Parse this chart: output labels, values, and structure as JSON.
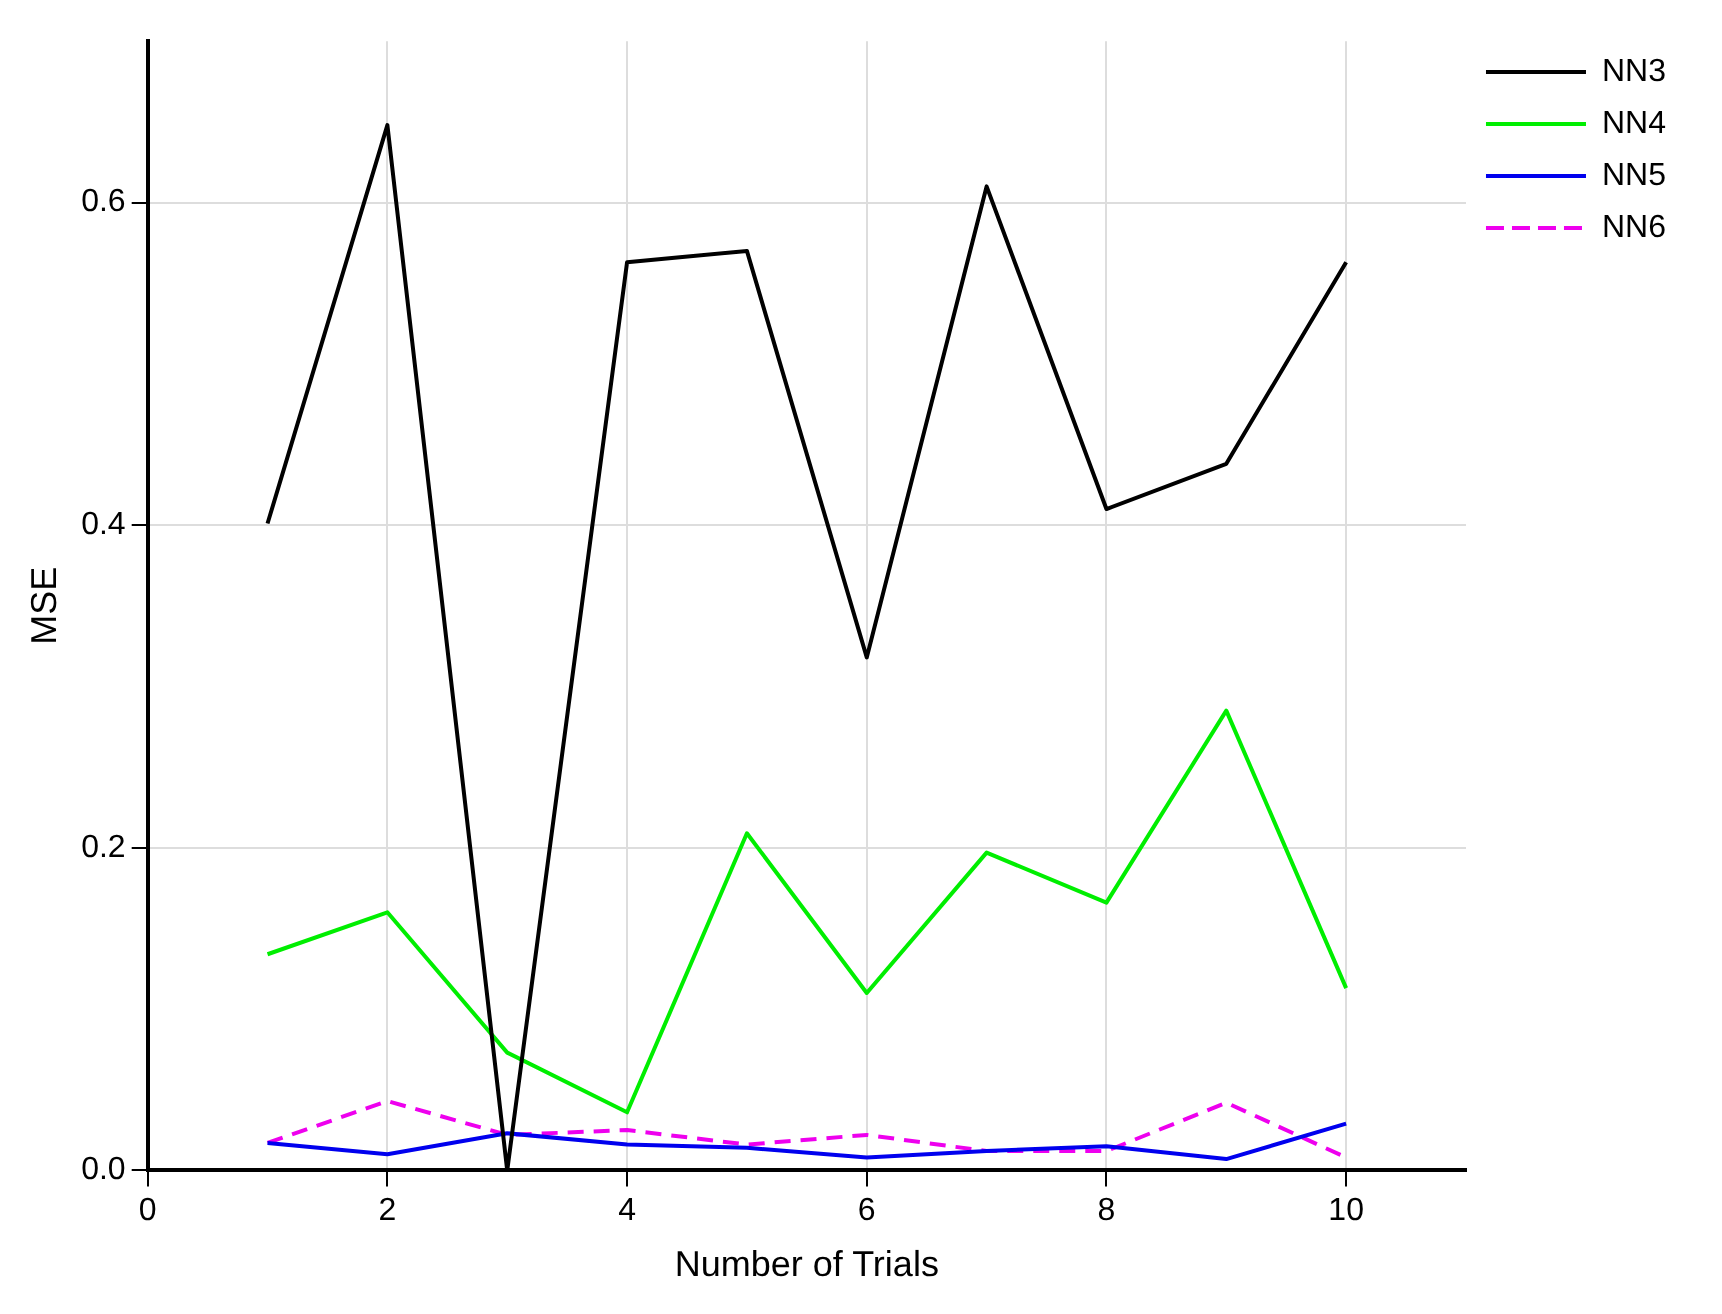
{
  "chart_data": {
    "type": "line",
    "xlabel": "Number of Trials",
    "ylabel": "MSE",
    "x": [
      1,
      2,
      3,
      4,
      5,
      6,
      7,
      8,
      9,
      10
    ],
    "xlim": [
      0,
      11
    ],
    "xticks": [
      0,
      2,
      4,
      6,
      8,
      10
    ],
    "ylim": [
      0,
      0.7
    ],
    "yticks": [
      {
        "value": 0,
        "label": "0.0"
      },
      {
        "value": 0.2,
        "label": "0.2"
      },
      {
        "value": 0.4,
        "label": "0.4"
      },
      {
        "value": 0.6,
        "label": "0.6"
      }
    ],
    "grid": true,
    "legend": "top right",
    "marker": "none",
    "series": [
      {
        "name": "NN3",
        "color": "#000000",
        "values": [
          0.401,
          0.648,
          0.0,
          0.563,
          0.57,
          0.318,
          0.61,
          0.41,
          0.438,
          0.563
        ]
      },
      {
        "name": "NN4",
        "color": "#00ee00",
        "values": [
          0.134,
          0.16,
          0.073,
          0.036,
          0.209,
          0.11,
          0.197,
          0.166,
          0.285,
          0.113
        ]
      },
      {
        "name": "NN5",
        "color": "#0000ee",
        "values": [
          0.017,
          0.01,
          0.023,
          0.016,
          0.014,
          0.008,
          0.012,
          0.015,
          0.007,
          0.029
        ]
      },
      {
        "name": "NN6",
        "color": "#ee00ee",
        "line_style": "dashed",
        "values": [
          0.017,
          0.043,
          0.022,
          0.025,
          0.016,
          0.022,
          0.012,
          0.012,
          0.042,
          0.008
        ]
      }
    ]
  }
}
